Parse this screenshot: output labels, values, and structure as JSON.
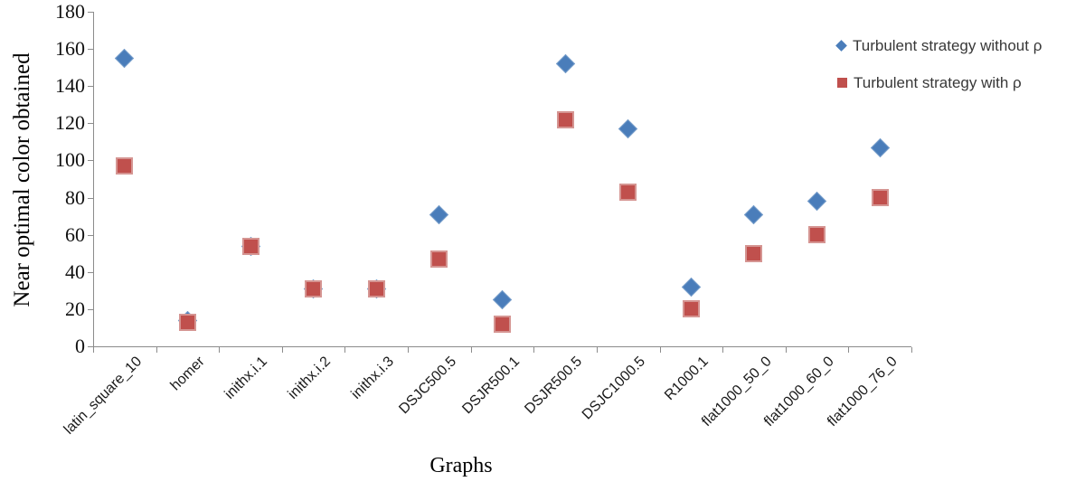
{
  "chart_data": {
    "type": "scatter",
    "title": "",
    "xlabel": "Graphs",
    "ylabel": "Near optimal color obtained",
    "ylim": [
      0,
      180
    ],
    "ytick_step": 20,
    "grid": false,
    "legend_position": "top-right",
    "axis_color": "#8c8c8c",
    "categories": [
      "latin_square_10",
      "homer",
      "inithx.i.1",
      "inithx.i.2",
      "inithx.i.3",
      "DSJC500.5",
      "DSJR500.1",
      "DSJR500.5",
      "DSJC1000.5",
      "R1000.1",
      "flat1000_50_0",
      "flat1000_60_0",
      "flat1000_76_0"
    ],
    "series": [
      {
        "name": "Turbulent strategy without ρ",
        "marker": "diamond",
        "color": "#4a7dba",
        "values": [
          155,
          14,
          54,
          31,
          31,
          71,
          25,
          152,
          117,
          32,
          71,
          78,
          107
        ]
      },
      {
        "name": "Turbulent strategy with ρ",
        "marker": "square",
        "color": "#c0504d",
        "values": [
          97,
          13,
          54,
          31,
          31,
          47,
          12,
          122,
          83,
          20,
          50,
          60,
          80
        ]
      }
    ]
  }
}
